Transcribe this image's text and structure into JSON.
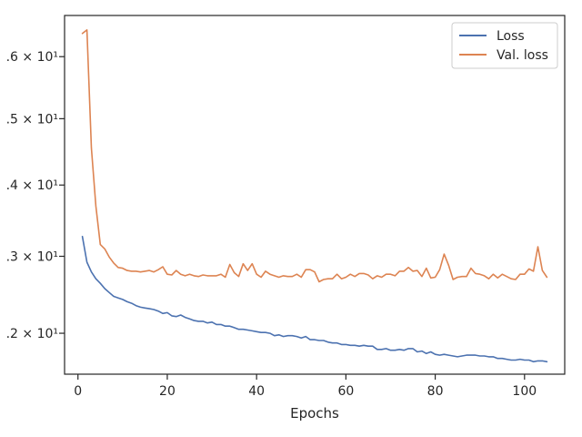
{
  "chart_data": {
    "type": "line",
    "title": "",
    "xlabel": "Epochs",
    "ylabel": "",
    "yscale": "log",
    "xlim": [
      -3,
      109
    ],
    "ylim": [
      1.15,
      1.67
    ],
    "grid": false,
    "legend_position": "top-right",
    "x_ticks": [
      0,
      20,
      40,
      60,
      80,
      100
    ],
    "x_tick_labels": [
      "0",
      "20",
      "40",
      "60",
      "80",
      "100"
    ],
    "y_ticks": [
      1.2,
      1.3,
      1.4,
      1.5,
      1.6
    ],
    "y_tick_labels": [
      ".2 × 10¹",
      ".3 × 10¹",
      ".4 × 10¹",
      ".5 × 10¹",
      ".6 × 10¹"
    ],
    "x": [
      1,
      2,
      3,
      4,
      5,
      6,
      7,
      8,
      9,
      10,
      11,
      12,
      13,
      14,
      15,
      16,
      17,
      18,
      19,
      20,
      21,
      22,
      23,
      24,
      25,
      26,
      27,
      28,
      29,
      30,
      31,
      32,
      33,
      34,
      35,
      36,
      37,
      38,
      39,
      40,
      41,
      42,
      43,
      44,
      45,
      46,
      47,
      48,
      49,
      50,
      51,
      52,
      53,
      54,
      55,
      56,
      57,
      58,
      59,
      60,
      61,
      62,
      63,
      64,
      65,
      66,
      67,
      68,
      69,
      70,
      71,
      72,
      73,
      74,
      75,
      76,
      77,
      78,
      79,
      80,
      81,
      82,
      83,
      84,
      85,
      86,
      87,
      88,
      89,
      90,
      91,
      92,
      93,
      94,
      95,
      96,
      97,
      98,
      99,
      100,
      101,
      102,
      103,
      104,
      105
    ],
    "series": [
      {
        "name": "Loss",
        "color": "#4c72b0",
        "values": [
          1.327,
          1.292,
          1.279,
          1.27,
          1.264,
          1.257,
          1.252,
          1.247,
          1.245,
          1.243,
          1.24,
          1.238,
          1.235,
          1.233,
          1.232,
          1.231,
          1.23,
          1.228,
          1.225,
          1.226,
          1.222,
          1.221,
          1.223,
          1.22,
          1.218,
          1.216,
          1.215,
          1.215,
          1.213,
          1.214,
          1.211,
          1.211,
          1.209,
          1.209,
          1.207,
          1.205,
          1.205,
          1.204,
          1.203,
          1.202,
          1.201,
          1.201,
          1.2,
          1.197,
          1.198,
          1.196,
          1.197,
          1.197,
          1.196,
          1.194,
          1.196,
          1.192,
          1.192,
          1.191,
          1.191,
          1.189,
          1.188,
          1.188,
          1.186,
          1.186,
          1.185,
          1.185,
          1.184,
          1.185,
          1.184,
          1.184,
          1.18,
          1.18,
          1.181,
          1.179,
          1.179,
          1.18,
          1.179,
          1.181,
          1.181,
          1.177,
          1.178,
          1.175,
          1.177,
          1.174,
          1.173,
          1.174,
          1.173,
          1.172,
          1.171,
          1.172,
          1.173,
          1.173,
          1.173,
          1.172,
          1.172,
          1.171,
          1.171,
          1.169,
          1.169,
          1.168,
          1.167,
          1.167,
          1.168,
          1.167,
          1.167,
          1.165,
          1.166,
          1.166,
          1.165
        ]
      },
      {
        "name": "Val. loss",
        "color": "#dd8452",
        "values": [
          1.639,
          1.645,
          1.455,
          1.37,
          1.316,
          1.31,
          1.299,
          1.291,
          1.285,
          1.284,
          1.281,
          1.28,
          1.28,
          1.279,
          1.28,
          1.281,
          1.279,
          1.282,
          1.286,
          1.276,
          1.275,
          1.281,
          1.276,
          1.274,
          1.276,
          1.274,
          1.273,
          1.275,
          1.274,
          1.274,
          1.274,
          1.276,
          1.272,
          1.289,
          1.278,
          1.273,
          1.29,
          1.281,
          1.29,
          1.276,
          1.272,
          1.28,
          1.276,
          1.274,
          1.272,
          1.274,
          1.273,
          1.273,
          1.276,
          1.272,
          1.282,
          1.282,
          1.279,
          1.266,
          1.269,
          1.27,
          1.27,
          1.276,
          1.27,
          1.272,
          1.276,
          1.273,
          1.277,
          1.277,
          1.275,
          1.27,
          1.274,
          1.272,
          1.276,
          1.276,
          1.274,
          1.28,
          1.28,
          1.285,
          1.28,
          1.281,
          1.273,
          1.284,
          1.271,
          1.272,
          1.282,
          1.303,
          1.288,
          1.269,
          1.272,
          1.273,
          1.273,
          1.284,
          1.277,
          1.276,
          1.274,
          1.27,
          1.276,
          1.271,
          1.276,
          1.273,
          1.27,
          1.269,
          1.276,
          1.276,
          1.283,
          1.28,
          1.313,
          1.281,
          1.272
        ]
      }
    ]
  }
}
